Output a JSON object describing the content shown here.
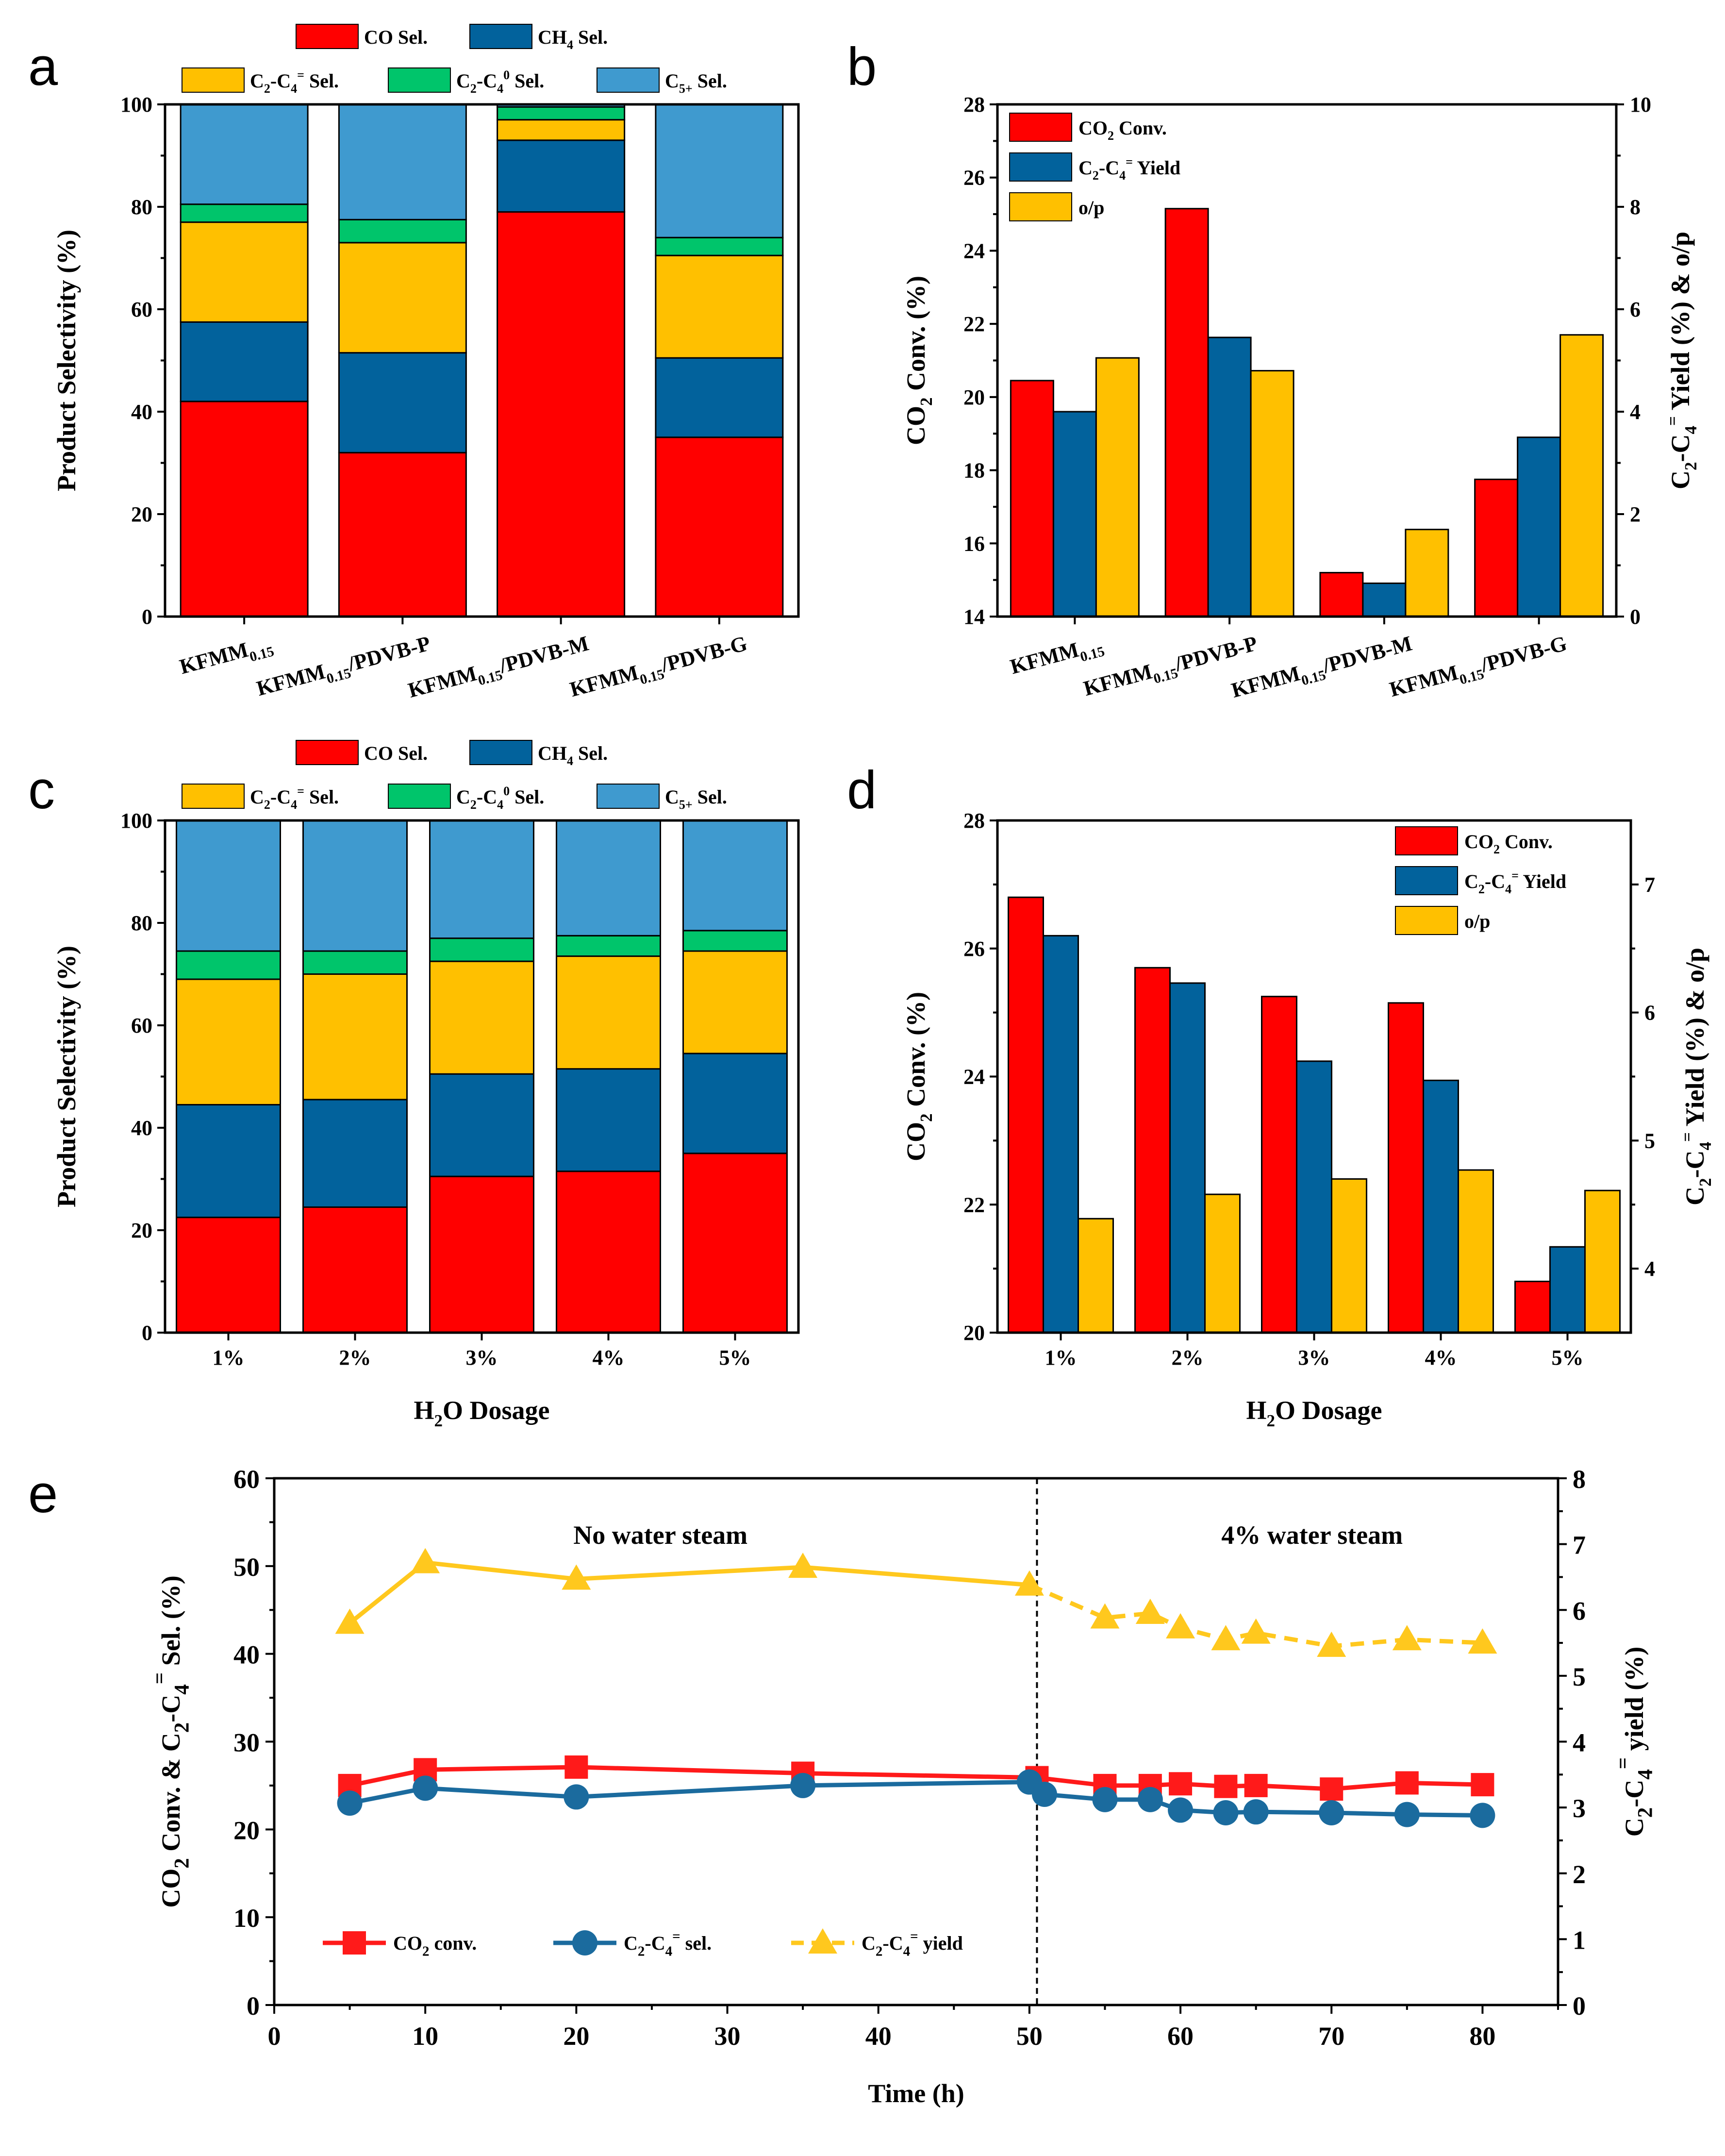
{
  "colors": {
    "co_sel": "#ff0000",
    "ch4_sel": "#02629c",
    "olefin_sel": "#ffc000",
    "paraffin_sel": "#00c56b",
    "c5_sel": "#3f9acf",
    "co2_conv": "#ff0000",
    "yield": "#02629c",
    "op": "#ffc000",
    "line_co2": "#ff1a1a",
    "line_sel": "#1b6b9e",
    "line_yield": "#ffc81e"
  },
  "chart_data": [
    {
      "panel": "a",
      "type": "bar",
      "stacked": true,
      "ylabel": "Product Selectivity (%)",
      "ylim": [
        0,
        100
      ],
      "yticks": [
        "0",
        "20",
        "40",
        "60",
        "80",
        "100"
      ],
      "categories": [
        {
          "main": "KFMM",
          "sub": "0.15",
          "rest": ""
        },
        {
          "main": "KFMM",
          "sub": "0.15",
          "rest": "/PDVB-P"
        },
        {
          "main": "KFMM",
          "sub": "0.15",
          "rest": "/PDVB-M"
        },
        {
          "main": "KFMM",
          "sub": "0.15",
          "rest": "/PDVB-G"
        }
      ],
      "series": [
        {
          "name": "CO Sel.",
          "values": [
            42,
            32,
            79,
            35
          ]
        },
        {
          "name": "CH4 Sel.",
          "values": [
            15.5,
            19.5,
            14,
            15.5
          ]
        },
        {
          "name": "C2-C4= Sel.",
          "values": [
            19.5,
            21.5,
            4,
            20
          ]
        },
        {
          "name": "C2-C40 Sel.",
          "values": [
            3.5,
            4.5,
            2.5,
            3.5
          ]
        },
        {
          "name": "C5+ Sel.",
          "values": [
            19.5,
            22.5,
            0.5,
            26
          ]
        }
      ],
      "legend": {
        "co": {
          "main": "CO Sel."
        },
        "ch4": {
          "main": "CH",
          "sub": "4",
          "rest": " Sel."
        },
        "olefin": {
          "main": "C",
          "sub": "2",
          "mid": "-C",
          "sub2": "4",
          "sup": "=",
          "rest": " Sel."
        },
        "paraffin": {
          "main": "C",
          "sub": "2",
          "mid": "-C",
          "sub2": "4",
          "sup": "0",
          "rest": " Sel."
        },
        "c5": {
          "main": "C",
          "sub": "5+",
          "rest": " Sel."
        }
      }
    },
    {
      "panel": "b",
      "type": "bar",
      "grouped": true,
      "ylabel": "CO2 Conv. (%)",
      "ylim": [
        14,
        28
      ],
      "yticks": [
        "14",
        "16",
        "18",
        "20",
        "22",
        "24",
        "26",
        "28"
      ],
      "y2label": "C2-C4= Yield (%) & o/p",
      "y2lim": [
        0,
        10
      ],
      "y2ticks": [
        "0",
        "2",
        "4",
        "6",
        "8",
        "10"
      ],
      "categories": [
        {
          "main": "KFMM",
          "sub": "0.15",
          "rest": ""
        },
        {
          "main": "KFMM",
          "sub": "0.15",
          "rest": "/PDVB-P"
        },
        {
          "main": "KFMM",
          "sub": "0.15",
          "rest": "/PDVB-M"
        },
        {
          "main": "KFMM",
          "sub": "0.15",
          "rest": "/PDVB-G"
        }
      ],
      "series": [
        {
          "name": "CO2 Conv.",
          "axis": "left",
          "values": [
            20.45,
            25.15,
            15.2,
            17.75
          ]
        },
        {
          "name": "C2-C4= Yield",
          "axis": "right",
          "values": [
            4.0,
            5.45,
            0.65,
            3.5
          ]
        },
        {
          "name": "o/p",
          "axis": "right",
          "values": [
            5.05,
            4.8,
            1.7,
            5.5
          ]
        }
      ],
      "legend": {
        "conv": {
          "main": "CO",
          "sub": "2",
          "rest": " Conv."
        },
        "yield": {
          "main": "C",
          "sub": "2",
          "mid": "-C",
          "sub2": "4",
          "sup": "=",
          "rest": " Yield"
        },
        "op": {
          "main": "o/p"
        }
      },
      "axis_title_left": {
        "main": "CO",
        "sub": "2",
        "rest": " Conv. (%)"
      },
      "axis_title_right": {
        "main": "C",
        "sub": "2",
        "mid": "-C",
        "sub2": "4",
        "sup": "=",
        "rest": " Yield (%) & o/p"
      }
    },
    {
      "panel": "c",
      "type": "bar",
      "stacked": true,
      "ylabel": "Product Selectivity (%)",
      "ylim": [
        0,
        100
      ],
      "yticks": [
        "0",
        "20",
        "40",
        "60",
        "80",
        "100"
      ],
      "xlabel": "H2O Dosage",
      "categories": [
        "1%",
        "2%",
        "3%",
        "4%",
        "5%"
      ],
      "series": [
        {
          "name": "CO Sel.",
          "values": [
            22.5,
            24.5,
            30.5,
            31.5,
            35
          ]
        },
        {
          "name": "CH4 Sel.",
          "values": [
            22,
            21,
            20,
            20,
            19.5
          ]
        },
        {
          "name": "C2-C4= Sel.",
          "values": [
            24.5,
            24.5,
            22,
            22,
            20
          ]
        },
        {
          "name": "C2-C40 Sel.",
          "values": [
            5.5,
            4.5,
            4.5,
            4,
            4
          ]
        },
        {
          "name": "C5+ Sel.",
          "values": [
            25.5,
            25.5,
            23,
            22.5,
            21.5
          ]
        }
      ],
      "legend": {
        "co": {
          "main": "CO Sel."
        },
        "ch4": {
          "main": "CH",
          "sub": "4",
          "rest": " Sel."
        },
        "olefin": {
          "main": "C",
          "sub": "2",
          "mid": "-C",
          "sub2": "4",
          "sup": "=",
          "rest": " Sel."
        },
        "paraffin": {
          "main": "C",
          "sub": "2",
          "mid": "-C",
          "sub2": "4",
          "sup": "0",
          "rest": " Sel."
        },
        "c5": {
          "main": "C",
          "sub": "5+",
          "rest": " Sel."
        }
      },
      "axis_title_x": {
        "main": "H",
        "sub": "2",
        "rest": "O Dosage"
      }
    },
    {
      "panel": "d",
      "type": "bar",
      "grouped": true,
      "ylabel": "CO2 Conv. (%)",
      "ylim": [
        20,
        28
      ],
      "yticks": [
        "20",
        "22",
        "24",
        "26",
        "28"
      ],
      "y2label": "C2-C4= Yield (%) & o/p",
      "y2lim": [
        3.5,
        7.5
      ],
      "y2ticks": [
        "4",
        "5",
        "6",
        "7"
      ],
      "xlabel": "H2O Dosage",
      "categories": [
        "1%",
        "2%",
        "3%",
        "4%",
        "5%"
      ],
      "series": [
        {
          "name": "CO2 Conv.",
          "axis": "left",
          "values": [
            26.8,
            25.7,
            25.25,
            25.15,
            20.8
          ]
        },
        {
          "name": "C2-C4= Yield",
          "axis": "right",
          "values": [
            6.6,
            6.23,
            5.62,
            5.47,
            4.17
          ]
        },
        {
          "name": "o/p",
          "axis": "right",
          "values": [
            4.39,
            4.58,
            4.7,
            4.77,
            4.61
          ]
        }
      ],
      "legend": {
        "conv": {
          "main": "CO",
          "sub": "2",
          "rest": " Conv."
        },
        "yield": {
          "main": "C",
          "sub": "2",
          "mid": "-C",
          "sub2": "4",
          "sup": "=",
          "rest": " Yield"
        },
        "op": {
          "main": "o/p"
        }
      },
      "axis_title_left": {
        "main": "CO",
        "sub": "2",
        "rest": " Conv. (%)"
      },
      "axis_title_right": {
        "main": "C",
        "sub": "2",
        "mid": "-C",
        "sub2": "4",
        "sup": "=",
        "rest": " Yield (%) & o/p"
      },
      "axis_title_x": {
        "main": "H",
        "sub": "2",
        "rest": "O Dosage"
      }
    },
    {
      "panel": "e",
      "type": "line",
      "xlabel": "Time (h)",
      "xlim": [
        0,
        85
      ],
      "xticks": [
        "0",
        "10",
        "20",
        "30",
        "40",
        "50",
        "60",
        "70",
        "80"
      ],
      "ylabel": "CO2 Conv. & C2-C4= Sel. (%)",
      "ylim": [
        0,
        60
      ],
      "yticks": [
        "0",
        "10",
        "20",
        "30",
        "40",
        "50",
        "60"
      ],
      "y2label": "C2-C4= yield (%)",
      "y2lim": [
        0,
        8
      ],
      "y2ticks": [
        "0",
        "1",
        "2",
        "3",
        "4",
        "5",
        "6",
        "7",
        "8"
      ],
      "divider_x": 50.5,
      "annotations": [
        "No water steam",
        "4% water steam"
      ],
      "series": [
        {
          "name": "CO2 conv.",
          "axis": "left",
          "marker": "square",
          "x": [
            5,
            10,
            20,
            35,
            50.5,
            55,
            58,
            60,
            63,
            65,
            70,
            75,
            80
          ],
          "y": [
            25,
            26.8,
            27.1,
            26.4,
            25.9,
            25.0,
            25.0,
            25.2,
            24.9,
            25.0,
            24.6,
            25.3,
            25.1
          ]
        },
        {
          "name": "C2-C4= sel.",
          "axis": "left",
          "marker": "circle",
          "x": [
            5,
            10,
            20,
            35,
            50,
            51,
            55,
            58,
            60,
            63,
            65,
            70,
            75,
            80
          ],
          "y": [
            23.0,
            24.7,
            23.7,
            25.0,
            25.4,
            24.0,
            23.4,
            23.4,
            22.2,
            21.9,
            22.0,
            21.9,
            21.7,
            21.6
          ]
        },
        {
          "name": "C2-C4= yield",
          "axis": "right",
          "marker": "triangle",
          "dashed_from_index": 5,
          "x": [
            5,
            10,
            20,
            35,
            50,
            55,
            58,
            60,
            63,
            65,
            70,
            75,
            80
          ],
          "y": [
            5.8,
            6.72,
            6.47,
            6.65,
            6.38,
            5.88,
            5.95,
            5.73,
            5.55,
            5.65,
            5.45,
            5.55,
            5.5
          ]
        }
      ],
      "legend": {
        "conv": {
          "main": "CO",
          "sub": "2",
          "rest": " conv."
        },
        "sel": {
          "main": "C",
          "sub": "2",
          "mid": "-C",
          "sub2": "4",
          "sup": "=",
          "rest": " sel."
        },
        "yield": {
          "main": "C",
          "sub": "2",
          "mid": "-C",
          "sub2": "4",
          "sup": "=",
          "rest": " yield"
        }
      },
      "axis_title_left": {
        "main": "CO",
        "sub": "2",
        "mid": " Conv. & C",
        "sub2": "2",
        "mid2": "-C",
        "sub3": "4",
        "sup": "=",
        "rest": " Sel. (%)"
      },
      "axis_title_right": {
        "main": "C",
        "sub": "2",
        "mid": "-C",
        "sub2": "4",
        "sup": "=",
        "rest": " yield (%)"
      }
    }
  ],
  "panel_labels": [
    "a",
    "b",
    "c",
    "d",
    "e"
  ]
}
